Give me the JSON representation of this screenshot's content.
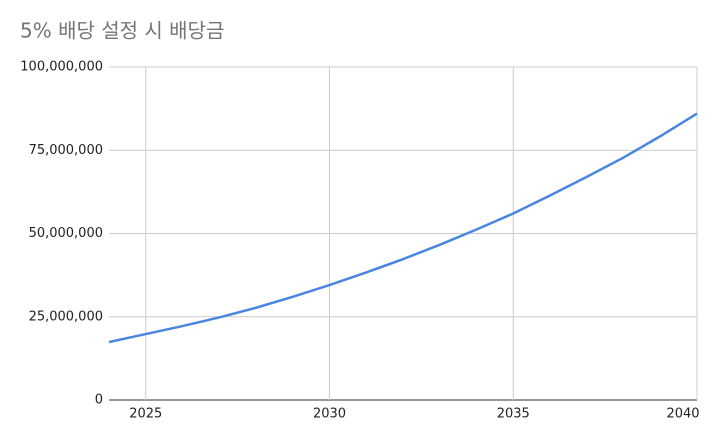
{
  "chart_data": {
    "type": "line",
    "title": "5% 배당 설정 시 배당금",
    "x": [
      2024,
      2025,
      2026,
      2027,
      2028,
      2029,
      2030,
      2031,
      2032,
      2033,
      2034,
      2035,
      2036,
      2037,
      2038,
      2039,
      2040
    ],
    "series": [
      {
        "color": "#4a86e0",
        "values": [
          17400000,
          19800000,
          22200000,
          24800000,
          27700000,
          31000000,
          34500000,
          38300000,
          42300000,
          46600000,
          51200000,
          56000000,
          61400000,
          67000000,
          72800000,
          79200000,
          86000000
        ]
      }
    ],
    "xlim": [
      2024,
      2040
    ],
    "xticks": [
      2025,
      2030,
      2035,
      2040
    ],
    "ylim": [
      0,
      100000000
    ],
    "yticks": [
      0,
      {
        "value": 25000000,
        "label": "25,000,000"
      },
      {
        "value": 50000000,
        "label": "50,000,000"
      },
      {
        "value": 75000000,
        "label": "75,000,000"
      },
      {
        "value": 100000000,
        "label": "100,000,000"
      }
    ],
    "grid": true
  }
}
